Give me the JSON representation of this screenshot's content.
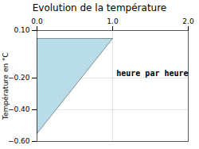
{
  "chart_data": {
    "type": "polygon",
    "title": "Evolution de la température",
    "ylabel": "Température en °C",
    "x": [
      0,
      1,
      0
    ],
    "values": [
      0.05,
      0.05,
      -0.55
    ],
    "color": "#b8dde8",
    "xlim": [
      0,
      2.0
    ],
    "ylim": [
      -0.6,
      0.1
    ],
    "xticks": [
      0,
      1,
      2
    ],
    "yticks": [
      0.1,
      -0.2,
      -0.4,
      -0.6
    ],
    "grid": true,
    "annotations": [
      {
        "text": "heure par heure",
        "x": 1.05,
        "y": -0.17
      }
    ]
  }
}
